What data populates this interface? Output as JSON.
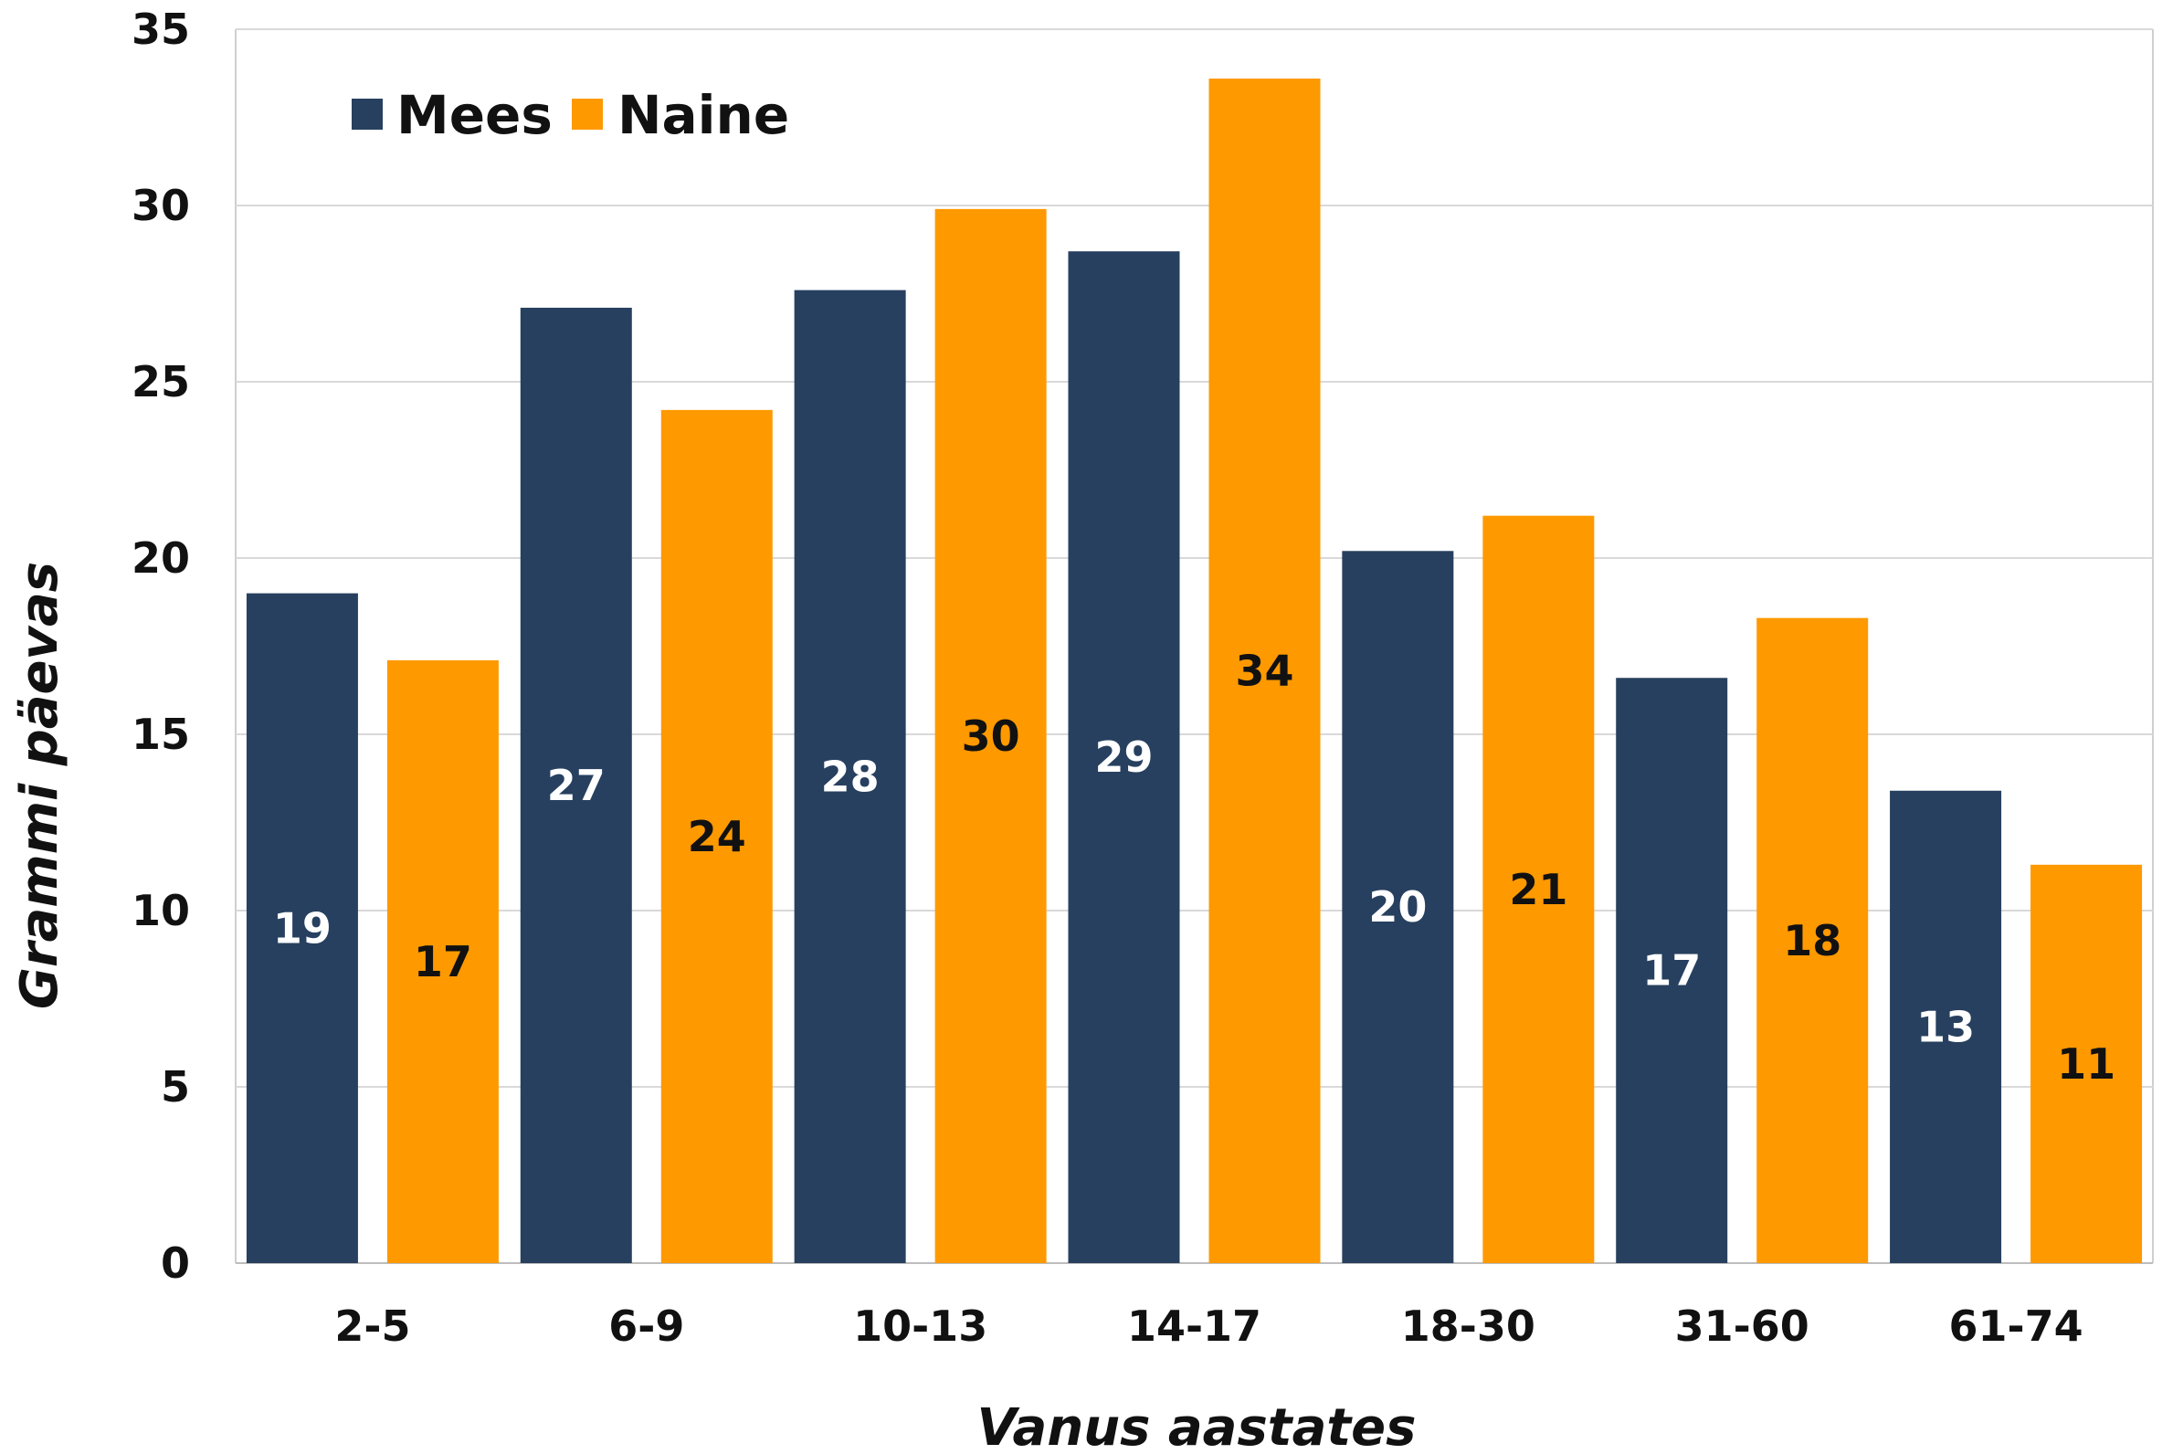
{
  "chart_data": {
    "type": "bar",
    "title": "",
    "xlabel": "Vanus aastates",
    "ylabel": "Grammi päevas",
    "ylim": [
      0,
      35
    ],
    "yticks": [
      0,
      5,
      10,
      15,
      20,
      25,
      30,
      35
    ],
    "grid": true,
    "legend_position": "top-left",
    "categories": [
      "2-5",
      "6-9",
      "10-13",
      "14-17",
      "18-30",
      "31-60",
      "61-74"
    ],
    "series": [
      {
        "name": "Mees",
        "color": "#27405f",
        "label_color": "#ffffff",
        "values": [
          19.0,
          27.1,
          27.6,
          28.7,
          20.2,
          16.6,
          13.4
        ],
        "labels": [
          "19",
          "27",
          "28",
          "29",
          "20",
          "17",
          "13"
        ]
      },
      {
        "name": "Naine",
        "color": "#ff9900",
        "label_color": "#111111",
        "values": [
          17.1,
          24.2,
          29.9,
          33.6,
          21.2,
          18.3,
          11.3
        ],
        "labels": [
          "17",
          "24",
          "30",
          "34",
          "21",
          "18",
          "11"
        ]
      }
    ]
  }
}
